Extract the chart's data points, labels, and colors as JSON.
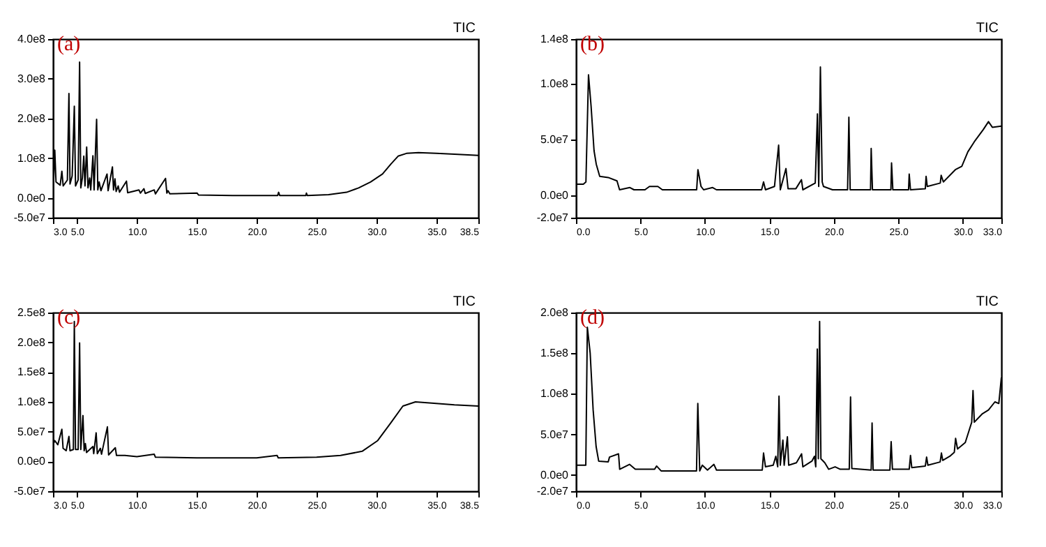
{
  "chart_data": [
    {
      "type": "line",
      "title": "(a)",
      "annotations": [
        "TIC"
      ],
      "xlim": [
        3,
        38.5
      ],
      "xticks": [
        {
          "value": 3,
          "label": "3.0"
        },
        {
          "value": 5,
          "label": "5.0"
        },
        {
          "value": 10,
          "label": "10.0"
        },
        {
          "value": 15,
          "label": "15.0"
        },
        {
          "value": 20,
          "label": "20.0"
        },
        {
          "value": 25,
          "label": "25.0"
        },
        {
          "value": 30,
          "label": "30.0"
        },
        {
          "value": 35,
          "label": "35.0"
        },
        {
          "value": 38.5,
          "label": "38.5"
        }
      ],
      "ylim": [
        -50000000.0,
        400000000.0
      ],
      "yticks": [
        {
          "value": -50000000.0,
          "label": "-5.0e7"
        },
        {
          "value": 0,
          "label": "0.0e0"
        },
        {
          "value": 100000000.0,
          "label": "1.0e8"
        },
        {
          "value": 200000000.0,
          "label": "2.0e8"
        },
        {
          "value": 300000000.0,
          "label": "3.0e8"
        },
        {
          "value": 400000000.0,
          "label": "4.0e8"
        }
      ],
      "x": [
        3.0,
        3.05,
        3.15,
        3.25,
        3.6,
        3.74,
        3.85,
        4.2,
        4.33,
        4.42,
        4.6,
        4.78,
        4.88,
        5.1,
        5.22,
        5.32,
        5.45,
        5.57,
        5.67,
        5.81,
        5.92,
        6.06,
        6.15,
        6.33,
        6.43,
        6.64,
        6.74,
        6.85,
        7.0,
        7.51,
        7.6,
        7.96,
        8.05,
        8.17,
        8.27,
        8.44,
        8.55,
        9.13,
        9.23,
        10.17,
        10.3,
        10.59,
        10.7,
        11.45,
        11.55,
        12.39,
        12.5,
        12.6,
        12.75,
        15.02,
        15.15,
        18,
        21.75,
        21.83,
        21.92,
        24.1,
        24.15,
        24.22,
        26.0,
        27.5,
        28.5,
        29.5,
        30.5,
        31.2,
        31.8,
        32.5,
        33.5,
        35.0,
        36.5,
        38.5
      ],
      "series": [
        {
          "color": "#000000",
          "values": [
            200000000.0,
            40000000.0,
            120000000.0,
            40000000.0,
            32000000.0,
            67000000.0,
            30000000.0,
            45000000.0,
            263000000.0,
            35000000.0,
            55000000.0,
            231000000.0,
            30000000.0,
            45000000.0,
            342000000.0,
            25000000.0,
            50000000.0,
            105000000.0,
            30000000.0,
            128000000.0,
            25000000.0,
            50000000.0,
            20000000.0,
            106000000.0,
            20000000.0,
            198000000.0,
            20000000.0,
            40000000.0,
            18000000.0,
            60000000.0,
            18000000.0,
            78000000.0,
            20000000.0,
            48000000.0,
            16000000.0,
            30000000.0,
            14000000.0,
            42000000.0,
            13000000.0,
            20000000.0,
            12000000.0,
            23000000.0,
            11000000.0,
            20000000.0,
            10000000.0,
            49000000.0,
            12000000.0,
            18000000.0,
            10000000.0,
            12000000.0,
            7000000.0,
            6000000.0,
            6000000.0,
            14000000.0,
            6000000.0,
            6000000.0,
            12000000.0,
            6000000.0,
            8000000.0,
            14000000.0,
            25000000.0,
            40000000.0,
            60000000.0,
            85000000.0,
            105000000.0,
            112000000.0,
            114000000.0,
            112000000.0,
            110000000.0,
            107000000.0
          ]
        }
      ]
    },
    {
      "type": "line",
      "title": "(b)",
      "annotations": [
        "TIC"
      ],
      "xlim": [
        0,
        33
      ],
      "xticks": [
        {
          "value": 0,
          "label": "0.0"
        },
        {
          "value": 5,
          "label": "5.0"
        },
        {
          "value": 10,
          "label": "10.0"
        },
        {
          "value": 15,
          "label": "15.0"
        },
        {
          "value": 20,
          "label": "20.0"
        },
        {
          "value": 25,
          "label": "25.0"
        },
        {
          "value": 30,
          "label": "30.0"
        },
        {
          "value": 33,
          "label": "33.0"
        }
      ],
      "ylim": [
        -20000000.0,
        140000000.0
      ],
      "yticks": [
        {
          "value": -20000000.0,
          "label": "-2.0e7"
        },
        {
          "value": 0,
          "label": "0.0e0"
        },
        {
          "value": 50000000.0,
          "label": "5.0e7"
        },
        {
          "value": 100000000.0,
          "label": "1.0e8"
        },
        {
          "value": 140000000.0,
          "label": "1.4e8"
        }
      ],
      "x": [
        0.0,
        0.57,
        0.77,
        0.97,
        1.17,
        1.4,
        1.57,
        1.84,
        2.5,
        3.18,
        3.38,
        4.18,
        4.5,
        5.35,
        5.7,
        6.35,
        6.7,
        9.36,
        9.46,
        9.7,
        9.9,
        10.6,
        10.9,
        14.4,
        14.55,
        14.7,
        15.4,
        15.72,
        15.85,
        16.29,
        16.45,
        17.06,
        17.49,
        17.6,
        18.56,
        18.73,
        18.83,
        18.96,
        19.1,
        19.2,
        19.9,
        21.07,
        21.17,
        21.27,
        22.85,
        22.9,
        23.0,
        24.43,
        24.48,
        24.58,
        25.8,
        25.85,
        25.95,
        27.1,
        27.16,
        27.25,
        28.26,
        28.33,
        28.5,
        29.43,
        29.93,
        30.4,
        30.9,
        31.6,
        32.0,
        32.3,
        33.0
      ],
      "series": [
        {
          "color": "#000000",
          "values": [
            10000000.0,
            10000000.0,
            12000000.0,
            108000000.0,
            80000000.0,
            40000000.0,
            28000000.0,
            17000000.0,
            16000000.0,
            13000000.0,
            5000000.0,
            7000000.0,
            5000000.0,
            5000000.0,
            8000000.0,
            8000000.0,
            5000000.0,
            5000000.0,
            23000000.0,
            8000000.0,
            5000000.0,
            7000000.0,
            5000000.0,
            5000000.0,
            12000000.0,
            5000000.0,
            8000000.0,
            45000000.0,
            5000000.0,
            24000000.0,
            6000000.0,
            6000000.0,
            14000000.0,
            5000000.0,
            11000000.0,
            73000000.0,
            8000000.0,
            115000000.0,
            12000000.0,
            8000000.0,
            5000000.0,
            5000000.0,
            70000000.0,
            5000000.0,
            5000000.0,
            42000000.0,
            5000000.0,
            5000000.0,
            29000000.0,
            5000000.0,
            5000000.0,
            19000000.0,
            5000000.0,
            6000000.0,
            17000000.0,
            8000000.0,
            11000000.0,
            18000000.0,
            12000000.0,
            23000000.0,
            26000000.0,
            39000000.0,
            48000000.0,
            59000000.0,
            66000000.0,
            61000000.0,
            62000000.0
          ]
        }
      ]
    },
    {
      "type": "line",
      "title": "(c)",
      "annotations": [
        "TIC"
      ],
      "xlim": [
        3,
        38.5
      ],
      "xticks": [
        {
          "value": 3,
          "label": "3.0"
        },
        {
          "value": 5,
          "label": "5.0"
        },
        {
          "value": 10,
          "label": "10.0"
        },
        {
          "value": 15,
          "label": "15.0"
        },
        {
          "value": 20,
          "label": "20.0"
        },
        {
          "value": 25,
          "label": "25.0"
        },
        {
          "value": 30,
          "label": "30.0"
        },
        {
          "value": 35,
          "label": "35.0"
        },
        {
          "value": 38.5,
          "label": "38.5"
        }
      ],
      "ylim": [
        -50000000.0,
        250000000.0
      ],
      "yticks": [
        {
          "value": -50000000.0,
          "label": "-5.0e7"
        },
        {
          "value": 0,
          "label": "0.0e0"
        },
        {
          "value": 50000000.0,
          "label": "5.0e7"
        },
        {
          "value": 100000000.0,
          "label": "1.0e8"
        },
        {
          "value": 150000000.0,
          "label": "1.5e8"
        },
        {
          "value": 200000000.0,
          "label": "2.0e8"
        },
        {
          "value": 250000000.0,
          "label": "2.5e8"
        }
      ],
      "x": [
        3.0,
        3.05,
        3.15,
        3.4,
        3.74,
        3.84,
        4.1,
        4.33,
        4.42,
        4.7,
        4.78,
        4.88,
        5.1,
        5.22,
        5.32,
        5.5,
        5.6,
        5.7,
        5.8,
        6.33,
        6.4,
        6.6,
        6.7,
        6.95,
        7.05,
        7.54,
        7.64,
        8.2,
        8.3,
        9.0,
        10.0,
        11.45,
        11.55,
        15,
        20,
        21.7,
        21.8,
        25,
        27,
        28.8,
        30.1,
        31.2,
        32.2,
        33.25,
        34.6,
        36.5,
        38.5
      ],
      "series": [
        {
          "color": "#000000",
          "values": [
            55000000.0,
            30000000.0,
            35000000.0,
            28000000.0,
            54000000.0,
            22000000.0,
            18000000.0,
            42000000.0,
            18000000.0,
            20000000.0,
            235000000.0,
            20000000.0,
            20000000.0,
            199000000.0,
            20000000.0,
            77000000.0,
            18000000.0,
            30000000.0,
            15000000.0,
            25000000.0,
            13000000.0,
            48000000.0,
            13000000.0,
            22000000.0,
            12000000.0,
            58000000.0,
            11000000.0,
            23000000.0,
            10000000.0,
            10000000.0,
            8000000.0,
            12000000.0,
            7000000.0,
            6000000.0,
            6000000.0,
            10000000.0,
            6000000.0,
            7000000.0,
            10000000.0,
            17000000.0,
            35000000.0,
            65000000.0,
            93000000.0,
            100000000.0,
            98000000.0,
            95000000.0,
            93000000.0
          ]
        }
      ]
    },
    {
      "type": "line",
      "title": "(d)",
      "annotations": [
        "TIC"
      ],
      "xlim": [
        0,
        33
      ],
      "xticks": [
        {
          "value": 0,
          "label": "0.0"
        },
        {
          "value": 5,
          "label": "5.0"
        },
        {
          "value": 10,
          "label": "10.0"
        },
        {
          "value": 15,
          "label": "15.0"
        },
        {
          "value": 20,
          "label": "20.0"
        },
        {
          "value": 25,
          "label": "25.0"
        },
        {
          "value": 30,
          "label": "30.0"
        },
        {
          "value": 33,
          "label": "33.0"
        }
      ],
      "ylim": [
        -20000000.0,
        200000000.0
      ],
      "yticks": [
        {
          "value": -20000000.0,
          "label": "-2.0e7"
        },
        {
          "value": 0,
          "label": "0.0e0"
        },
        {
          "value": 50000000.0,
          "label": "5.0e7"
        },
        {
          "value": 100000000.0,
          "label": "1.0e8"
        },
        {
          "value": 150000000.0,
          "label": "1.5e8"
        },
        {
          "value": 200000000.0,
          "label": "2.0e8"
        }
      ],
      "x": [
        0.0,
        0.76,
        0.88,
        1.1,
        1.33,
        1.56,
        1.76,
        2.5,
        2.6,
        3.3,
        3.39,
        4.15,
        4.6,
        6.1,
        6.25,
        6.6,
        9.35,
        9.45,
        9.6,
        9.8,
        10.2,
        10.7,
        10.9,
        14.45,
        14.55,
        14.7,
        15.3,
        15.5,
        15.65,
        15.75,
        15.85,
        16.05,
        16.15,
        16.4,
        16.5,
        17.1,
        17.5,
        17.6,
        18.3,
        18.5,
        18.6,
        18.72,
        18.8,
        18.9,
        19.0,
        19.3,
        19.6,
        20.1,
        20.5,
        21.2,
        21.3,
        21.4,
        22.9,
        22.97,
        23.05,
        24.35,
        24.45,
        24.55,
        25.85,
        25.95,
        26.05,
        27.1,
        27.2,
        27.3,
        28.25,
        28.35,
        28.45,
        29.0,
        29.35,
        29.45,
        29.6,
        30.2,
        30.5,
        30.7,
        30.8,
        30.9,
        31.5,
        32.0,
        32.5,
        32.8,
        33.0
      ],
      "series": [
        {
          "color": "#000000",
          "values": [
            12000000.0,
            12000000.0,
            182000000.0,
            150000000.0,
            80000000.0,
            35000000.0,
            17000000.0,
            16000000.0,
            22000000.0,
            26000000.0,
            7000000.0,
            13000000.0,
            7000000.0,
            7000000.0,
            11000000.0,
            5000000.0,
            5000000.0,
            88000000.0,
            5000000.0,
            12000000.0,
            6000000.0,
            13000000.0,
            6000000.0,
            6000000.0,
            27000000.0,
            10000000.0,
            12000000.0,
            23000000.0,
            10000000.0,
            97000000.0,
            12000000.0,
            43000000.0,
            12000000.0,
            47000000.0,
            12000000.0,
            15000000.0,
            26000000.0,
            10000000.0,
            17000000.0,
            23000000.0,
            10000000.0,
            155000000.0,
            20000000.0,
            189000000.0,
            20000000.0,
            15000000.0,
            7000000.0,
            10000000.0,
            7000000.0,
            7000000.0,
            96000000.0,
            8000000.0,
            6000000.0,
            64000000.0,
            6000000.0,
            6000000.0,
            41000000.0,
            7000000.0,
            7000000.0,
            24000000.0,
            9000000.0,
            11000000.0,
            22000000.0,
            12000000.0,
            16000000.0,
            27000000.0,
            18000000.0,
            23000000.0,
            28000000.0,
            45000000.0,
            32000000.0,
            40000000.0,
            55000000.0,
            65000000.0,
            104000000.0,
            65000000.0,
            75000000.0,
            80000000.0,
            90000000.0,
            88000000.0,
            120000000.0
          ]
        }
      ]
    }
  ]
}
